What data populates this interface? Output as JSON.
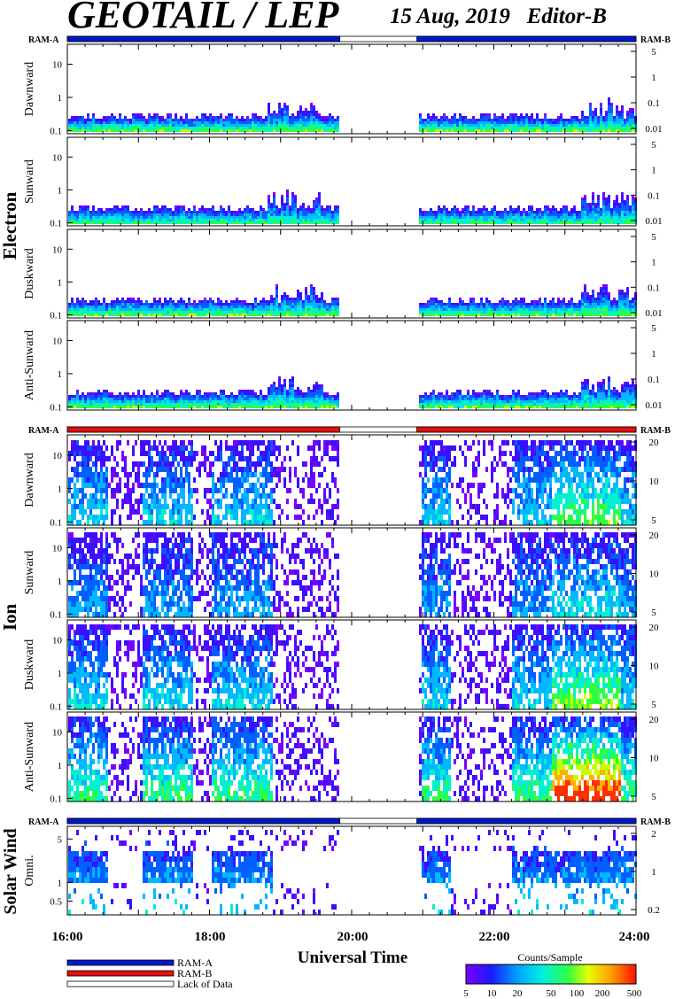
{
  "header": {
    "title": "GEOTAIL / LEP",
    "date_editor": "15 Aug, 2019   Editor-B"
  },
  "groups": {
    "electron": "Electron",
    "ion": "Ion",
    "solar_wind": "Solar Wind"
  },
  "ram_labels": {
    "left": "RAM-A",
    "right": "RAM-B"
  },
  "chart_data": {
    "type": "heatmap",
    "title": "GEOTAIL / LEP",
    "subtitle": "15 Aug, 2019   Editor-B",
    "xlabel": "Universal Time",
    "x_range_hours": [
      16,
      24
    ],
    "x_ticks": [
      "16:00",
      "18:00",
      "20:00",
      "22:00",
      "24:00"
    ],
    "data_gap": [
      "19:50",
      "20:55"
    ],
    "panels": [
      {
        "group": "Electron",
        "label": "Dawnward",
        "left_ticks": [
          "10",
          "1",
          "0.1"
        ],
        "right_ticks": [
          "5",
          "1",
          "0.1",
          "0.01"
        ],
        "ylim": [
          0.08,
          40
        ],
        "level": 0.1
      },
      {
        "group": "Electron",
        "label": "Sunward",
        "left_ticks": [
          "10",
          "1",
          "0.1"
        ],
        "right_ticks": [
          "5",
          "1",
          "0.1",
          "0.01"
        ],
        "ylim": [
          0.08,
          40
        ],
        "level": 0.08
      },
      {
        "group": "Electron",
        "label": "Duskward",
        "left_ticks": [
          "10",
          "1",
          "0.1"
        ],
        "right_ticks": [
          "5",
          "1",
          "0.1",
          "0.01"
        ],
        "ylim": [
          0.08,
          40
        ],
        "level": 0.1
      },
      {
        "group": "Electron",
        "label": "Anti-Sunward",
        "left_ticks": [
          "10",
          "1",
          "0.1"
        ],
        "right_ticks": [
          "5",
          "1",
          "0.1",
          "0.01"
        ],
        "ylim": [
          0.08,
          40
        ],
        "level": 0.1
      },
      {
        "group": "Ion",
        "label": "Dawnward",
        "left_ticks": [
          "10",
          "1",
          "0.1"
        ],
        "right_ticks": [
          "20",
          "10",
          "5"
        ],
        "ylim": [
          0.08,
          40
        ],
        "level": 0.3
      },
      {
        "group": "Ion",
        "label": "Sunward",
        "left_ticks": [
          "10",
          "1",
          "0.1"
        ],
        "right_ticks": [
          "20",
          "10",
          "5"
        ],
        "ylim": [
          0.08,
          40
        ],
        "level": 0.15
      },
      {
        "group": "Ion",
        "label": "Duskward",
        "left_ticks": [
          "10",
          "1",
          "0.1"
        ],
        "right_ticks": [
          "20",
          "10",
          "5"
        ],
        "ylim": [
          0.08,
          40
        ],
        "level": 0.35
      },
      {
        "group": "Ion",
        "label": "Anti-Sunward",
        "left_ticks": [
          "10",
          "1",
          "0.1"
        ],
        "right_ticks": [
          "20",
          "10",
          "5"
        ],
        "ylim": [
          0.08,
          40
        ],
        "level": 0.65
      },
      {
        "group": "Solar Wind",
        "label": "Omni.",
        "left_ticks": [
          "5",
          "1",
          "0.5"
        ],
        "right_ticks": [
          "2",
          "1",
          "0.2"
        ],
        "ylim": [
          0.3,
          8
        ],
        "level": 0.3
      }
    ],
    "ram_bars": [
      {
        "mode": "RAM-A",
        "color": "#0018c8",
        "segments": [
          [
            "16:00",
            "19:50"
          ],
          [
            "20:55",
            "24:00"
          ]
        ]
      },
      {
        "mode": "RAM-B",
        "color": "#e01010",
        "segments": [
          [
            "16:00",
            "19:50"
          ],
          [
            "20:55",
            "24:00"
          ]
        ]
      },
      {
        "mode": "RAM-A",
        "color": "#0018c8",
        "segments": [
          [
            "16:00",
            "19:50"
          ],
          [
            "20:55",
            "24:00"
          ]
        ]
      }
    ],
    "legend": [
      {
        "label": "RAM-A",
        "color": "#0018c8"
      },
      {
        "label": "RAM-B",
        "color": "#e01010"
      },
      {
        "label": "Lack of Data",
        "color": "#ffffff"
      }
    ],
    "colorbar": {
      "title": "Counts/Sample",
      "ticks": [
        "5",
        "10",
        "20",
        "50",
        "100",
        "200",
        "500"
      ],
      "scale": "log",
      "range": [
        5,
        500
      ]
    }
  }
}
